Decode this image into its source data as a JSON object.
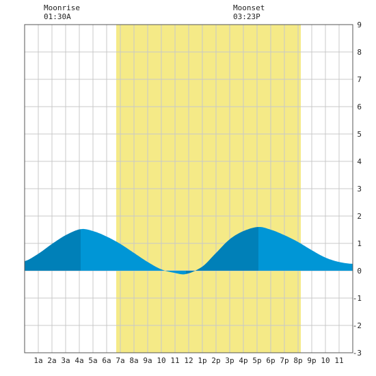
{
  "moon": {
    "rise_label": "Moonrise",
    "rise_time": "01:30A",
    "set_label": "Moonset",
    "set_time": "03:23P"
  },
  "chart_data": {
    "type": "area",
    "title": "",
    "xlabel": "",
    "ylabel": "",
    "xlim": [
      0,
      24
    ],
    "ylim": [
      -3,
      9
    ],
    "grid": true,
    "x_ticks": [
      {
        "x": 1,
        "label": "1a"
      },
      {
        "x": 2,
        "label": "2a"
      },
      {
        "x": 3,
        "label": "3a"
      },
      {
        "x": 4,
        "label": "4a"
      },
      {
        "x": 5,
        "label": "5a"
      },
      {
        "x": 6,
        "label": "6a"
      },
      {
        "x": 7,
        "label": "7a"
      },
      {
        "x": 8,
        "label": "8a"
      },
      {
        "x": 9,
        "label": "9a"
      },
      {
        "x": 10,
        "label": "10"
      },
      {
        "x": 11,
        "label": "11"
      },
      {
        "x": 12,
        "label": "12"
      },
      {
        "x": 13,
        "label": "1p"
      },
      {
        "x": 14,
        "label": "2p"
      },
      {
        "x": 15,
        "label": "3p"
      },
      {
        "x": 16,
        "label": "4p"
      },
      {
        "x": 17,
        "label": "5p"
      },
      {
        "x": 18,
        "label": "6p"
      },
      {
        "x": 19,
        "label": "7p"
      },
      {
        "x": 20,
        "label": "8p"
      },
      {
        "x": 21,
        "label": "9p"
      },
      {
        "x": 22,
        "label": "10"
      },
      {
        "x": 23,
        "label": "11"
      }
    ],
    "y_ticks": [
      -3,
      -2,
      -1,
      0,
      1,
      2,
      3,
      4,
      5,
      6,
      7,
      8,
      9
    ],
    "daylight": {
      "start": 6.7,
      "end": 20.2
    },
    "series": [
      {
        "x": [
          0,
          1,
          2,
          3,
          4.1,
          5,
          6,
          7,
          8,
          9,
          10,
          11,
          11.8,
          13,
          14,
          15,
          16,
          17.1,
          18,
          19,
          20,
          21,
          22,
          23,
          24
        ],
        "values": [
          0.35,
          0.62,
          0.98,
          1.3,
          1.52,
          1.45,
          1.25,
          0.98,
          0.65,
          0.32,
          0.05,
          -0.08,
          -0.12,
          0.15,
          0.65,
          1.15,
          1.45,
          1.6,
          1.5,
          1.3,
          1.05,
          0.75,
          0.48,
          0.32,
          0.25
        ]
      }
    ],
    "colors": {
      "tide": "#0096d6",
      "tide_dark": "#0080b8",
      "daylight": "#f5ea87",
      "grid": "#c8c8c8"
    }
  }
}
